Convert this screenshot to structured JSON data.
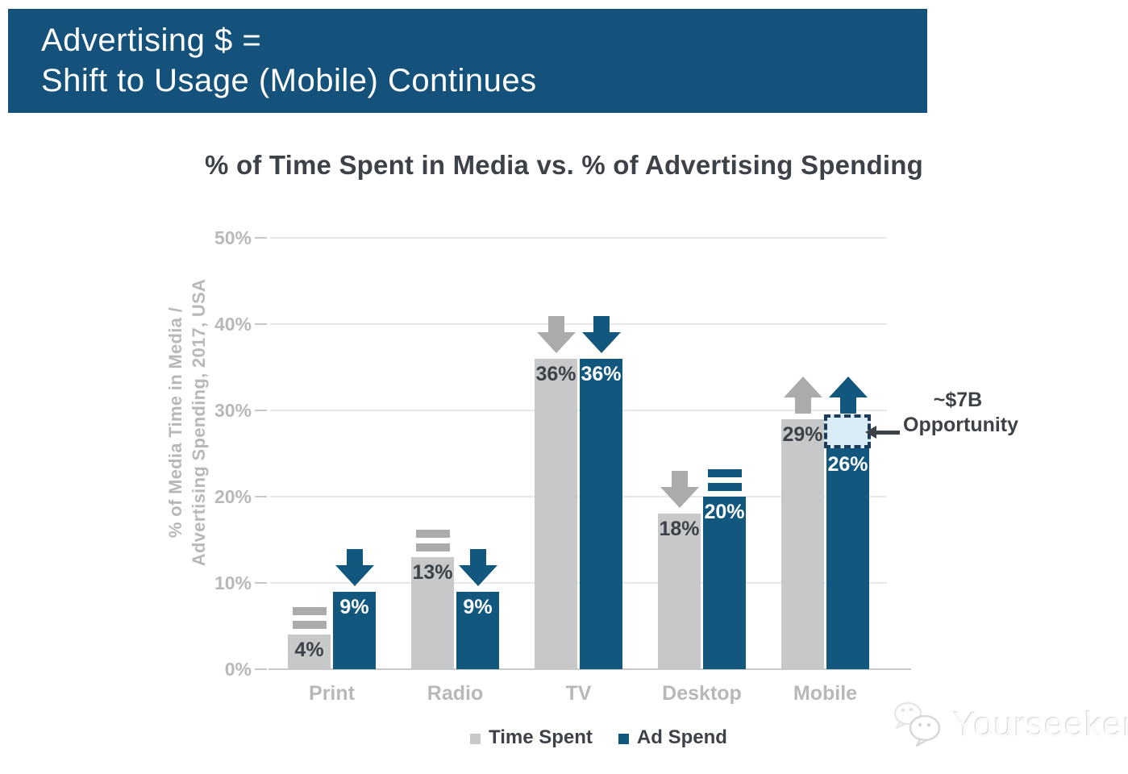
{
  "banner": {
    "line1": "Advertising $ =",
    "line2": "Shift to Usage (Mobile) Continues",
    "background": "#15527b",
    "text_color": "#ffffff"
  },
  "chart_data": {
    "type": "bar",
    "title": "% of Time Spent in Media vs. % of Advertising Spending",
    "ylabel_lines": [
      "% of Media Time in Media /",
      "Advertising Spending, 2017, USA"
    ],
    "categories": [
      "Print",
      "Radio",
      "TV",
      "Desktop",
      "Mobile"
    ],
    "ylim": [
      0,
      50
    ],
    "yticks": [
      0,
      10,
      20,
      30,
      40,
      50
    ],
    "ytick_labels": [
      "0%",
      "10%",
      "20%",
      "30%",
      "40%",
      "50%"
    ],
    "grid": true,
    "legend_position": "bottom",
    "series": [
      {
        "name": "Time Spent",
        "color": "#c7c8c9",
        "marker_color": "#a9abad",
        "label_color": "#3d4248",
        "values": [
          4,
          13,
          36,
          18,
          29
        ],
        "labels": [
          "4%",
          "13%",
          "36%",
          "18%",
          "29%"
        ],
        "trends": [
          "flat",
          "flat",
          "down",
          "down",
          "up"
        ]
      },
      {
        "name": "Ad Spend",
        "color": "#12577e",
        "marker_color": "#12577e",
        "label_color": "#ffffff",
        "values": [
          9,
          9,
          36,
          20,
          26
        ],
        "labels": [
          "9%",
          "9%",
          "36%",
          "20%",
          "26%"
        ],
        "trends": [
          "down",
          "down",
          "down",
          "flat",
          "up"
        ]
      }
    ],
    "opportunity_box": {
      "category": "Mobile",
      "series": "Ad Spend",
      "from": 26,
      "to": 29,
      "fill": "#d9ecf8",
      "border": "#1d3c5a"
    },
    "annotation": {
      "line1": "~$7B",
      "line2": "Opportunity",
      "color": "#3d4248"
    }
  },
  "watermark": {
    "text": "Yourseeker",
    "logo": "wechat-logo"
  }
}
